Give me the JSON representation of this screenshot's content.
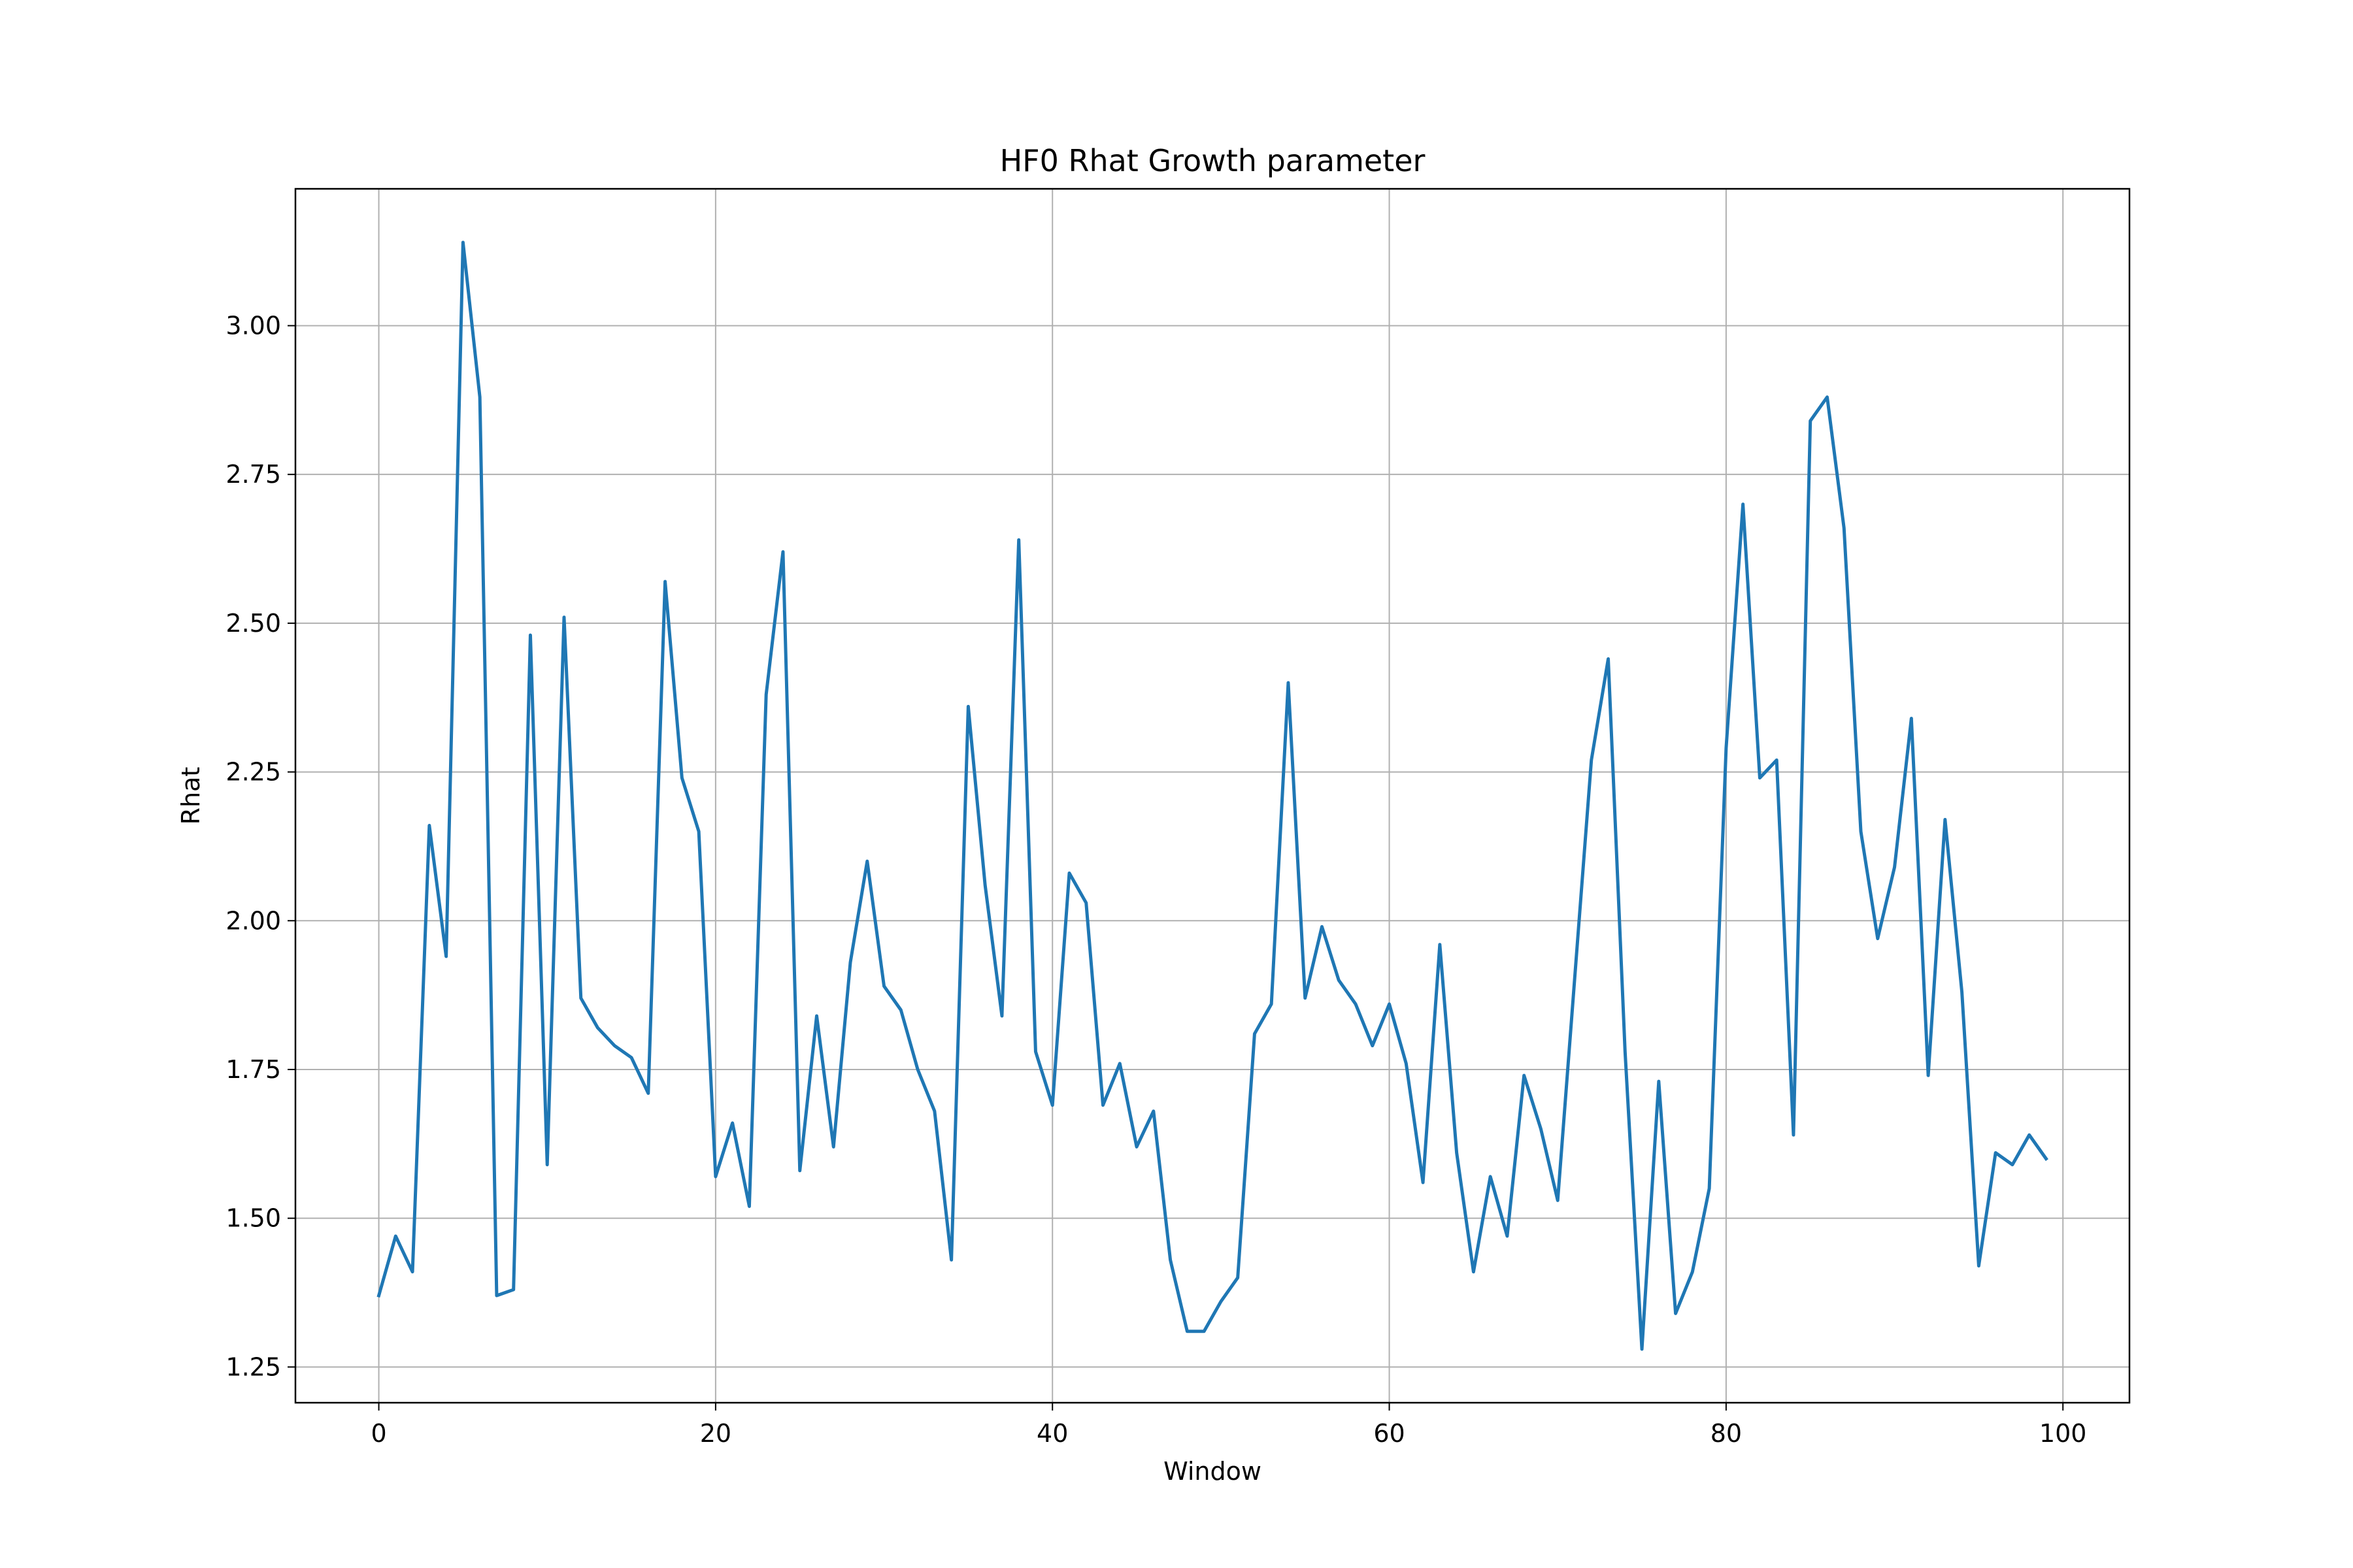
{
  "chart_data": {
    "type": "line",
    "title": "HF0 Rhat Growth parameter",
    "xlabel": "Window",
    "ylabel": "Rhat",
    "xlim": [
      -4.95,
      103.95
    ],
    "ylim": [
      1.19,
      3.23
    ],
    "x_ticks": [
      0,
      20,
      40,
      60,
      80,
      100
    ],
    "y_ticks": [
      1.25,
      1.5,
      1.75,
      2.0,
      2.25,
      2.5,
      2.75,
      3.0
    ],
    "grid": true,
    "legend": "none",
    "series": [
      {
        "color": "#1f77b4",
        "x": [
          0,
          1,
          2,
          3,
          4,
          5,
          6,
          7,
          8,
          9,
          10,
          11,
          12,
          13,
          14,
          15,
          16,
          17,
          18,
          19,
          20,
          21,
          22,
          23,
          24,
          25,
          26,
          27,
          28,
          29,
          30,
          31,
          32,
          33,
          34,
          35,
          36,
          37,
          38,
          39,
          40,
          41,
          42,
          43,
          44,
          45,
          46,
          47,
          48,
          49,
          50,
          51,
          52,
          53,
          54,
          55,
          56,
          57,
          58,
          59,
          60,
          61,
          62,
          63,
          64,
          65,
          66,
          67,
          68,
          69,
          70,
          71,
          72,
          73,
          74,
          75,
          76,
          77,
          78,
          79,
          80,
          81,
          82,
          83,
          84,
          85,
          86,
          87,
          88,
          89,
          90,
          91,
          92,
          93,
          94,
          95,
          96,
          97,
          98,
          99
        ],
        "values": [
          1.37,
          1.47,
          1.41,
          2.16,
          1.94,
          3.14,
          2.88,
          1.37,
          1.38,
          2.48,
          1.59,
          2.51,
          1.87,
          1.82,
          1.79,
          1.77,
          1.71,
          2.57,
          2.24,
          2.15,
          1.57,
          1.66,
          1.52,
          2.38,
          2.62,
          1.58,
          1.84,
          1.62,
          1.93,
          2.1,
          1.89,
          1.85,
          1.75,
          1.68,
          1.43,
          2.36,
          2.06,
          1.84,
          2.64,
          1.78,
          1.69,
          2.08,
          2.03,
          1.69,
          1.76,
          1.62,
          1.68,
          1.43,
          1.31,
          1.31,
          1.36,
          1.4,
          1.81,
          1.86,
          2.4,
          1.87,
          1.99,
          1.9,
          1.86,
          1.79,
          1.86,
          1.76,
          1.56,
          1.96,
          1.61,
          1.41,
          1.57,
          1.47,
          1.74,
          1.65,
          1.53,
          1.9,
          2.27,
          2.44,
          1.78,
          1.28,
          1.73,
          1.34,
          1.41,
          1.55,
          2.29,
          2.7,
          2.24,
          2.27,
          1.64,
          2.84,
          2.88,
          2.66,
          2.15,
          1.97,
          2.09,
          2.34,
          1.74,
          2.17,
          1.88,
          1.42,
          1.61,
          1.59,
          1.64,
          1.6
        ]
      }
    ]
  }
}
